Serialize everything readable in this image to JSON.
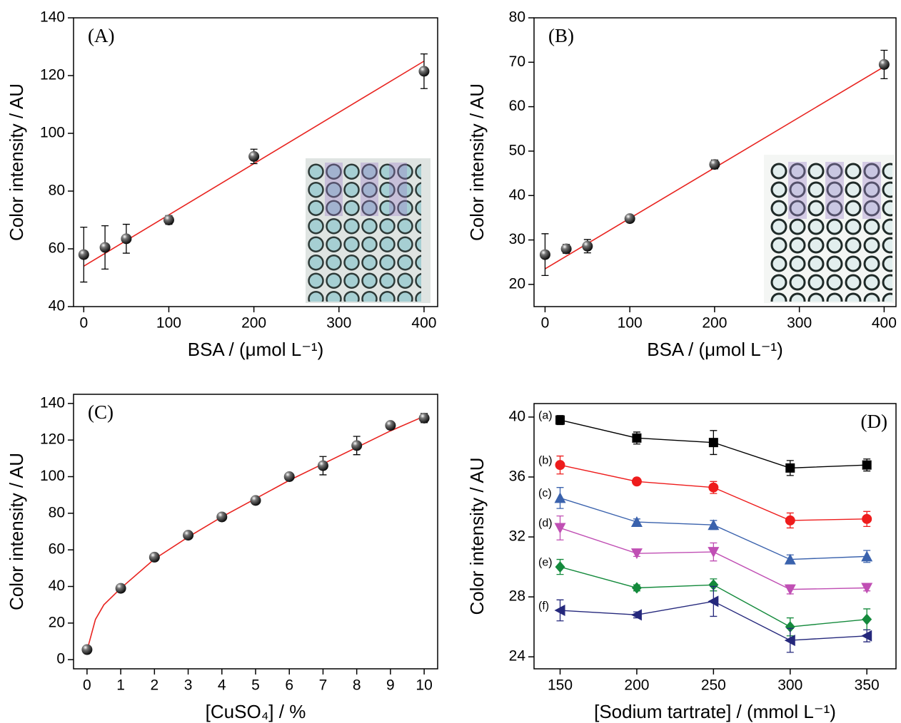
{
  "chart_data": [
    {
      "type": "scatter",
      "annotation": "(A)",
      "x_label": "BSA / (μmol L⁻¹)",
      "y_label": "Color intensity / AU",
      "xlim": [
        -12,
        416
      ],
      "xticks": [
        0,
        100,
        200,
        300,
        400
      ],
      "ylim": [
        40,
        140
      ],
      "yticks": [
        40,
        60,
        80,
        100,
        120,
        140
      ],
      "x": [
        0,
        25,
        50,
        100,
        200,
        400
      ],
      "series": [
        {
          "color": "#111111",
          "marker": "sphere",
          "values": [
            58,
            60.5,
            63.5,
            70,
            92,
            121.5
          ],
          "errors": [
            9.5,
            7.5,
            5,
            1.5,
            2.5,
            6
          ]
        }
      ],
      "fit": {
        "color": "#e8231f",
        "x": [
          0,
          400
        ],
        "values": [
          54,
          125
        ]
      }
    },
    {
      "type": "scatter",
      "annotation": "(B)",
      "x_label": "BSA / (μmol L⁻¹)",
      "y_label": "Color intensity / AU",
      "xlim": [
        -13,
        414
      ],
      "xticks": [
        0,
        100,
        200,
        300,
        400
      ],
      "ylim": [
        15,
        80
      ],
      "yticks": [
        20,
        30,
        40,
        50,
        60,
        70,
        80
      ],
      "x": [
        0,
        25,
        50,
        100,
        200,
        400
      ],
      "series": [
        {
          "color": "#111111",
          "marker": "sphere",
          "values": [
            26.7,
            28,
            28.6,
            34.8,
            47,
            69.5
          ],
          "errors": [
            4.7,
            1,
            1.5,
            0.5,
            1,
            3.2
          ]
        }
      ],
      "fit": {
        "color": "#e8231f",
        "x": [
          0,
          400
        ],
        "values": [
          23.5,
          69
        ]
      }
    },
    {
      "type": "scatter",
      "annotation": "(C)",
      "x_label": "[CuSO₄] / %",
      "y_label": "Color intensity / AU",
      "xlim": [
        -0.4,
        10.4
      ],
      "xticks": [
        0,
        1,
        2,
        3,
        4,
        5,
        6,
        7,
        8,
        9,
        10
      ],
      "ylim": [
        -5,
        145
      ],
      "yticks": [
        0,
        20,
        40,
        60,
        80,
        100,
        120,
        140
      ],
      "x": [
        0,
        1,
        2,
        3,
        4,
        5,
        6,
        7,
        8,
        9,
        10
      ],
      "series": [
        {
          "color": "#111111",
          "marker": "sphere",
          "values": [
            5.5,
            39,
            56,
            68,
            78,
            87,
            100,
            106,
            117,
            128,
            132
          ],
          "errors": [
            0,
            0,
            0,
            0,
            0,
            0,
            0,
            5,
            5,
            1,
            2.5
          ]
        }
      ],
      "fit": {
        "color": "#e8231f",
        "x": [
          0,
          0.25,
          0.5,
          1,
          2,
          3,
          4,
          5,
          6,
          7,
          8,
          9,
          10
        ],
        "values": [
          5,
          22,
          30,
          39,
          55,
          67,
          78,
          88,
          98,
          107,
          116,
          125,
          133
        ]
      }
    },
    {
      "type": "line",
      "annotation": "(D)",
      "x_label": "[Sodium tartrate] / (mmol L⁻¹)",
      "y_label": "Color intensity / AU",
      "xlim": [
        133,
        369
      ],
      "xticks": [
        150,
        200,
        250,
        300,
        350
      ],
      "ylim": [
        23.2,
        40.9
      ],
      "yticks": [
        24,
        28,
        32,
        36,
        40
      ],
      "x": [
        150,
        200,
        250,
        300,
        350
      ],
      "series": [
        {
          "name": "(a)",
          "color": "#000000",
          "marker": "square",
          "values": [
            39.8,
            38.6,
            38.3,
            36.6,
            36.8
          ],
          "errors": [
            0.3,
            0.4,
            0.8,
            0.5,
            0.4
          ]
        },
        {
          "name": "(b)",
          "color": "#ee1c1c",
          "marker": "circle",
          "values": [
            36.8,
            35.7,
            35.3,
            33.1,
            33.2
          ],
          "errors": [
            0.6,
            0.2,
            0.4,
            0.5,
            0.5
          ]
        },
        {
          "name": "(c)",
          "color": "#3a62ad",
          "marker": "triangle-up",
          "values": [
            34.6,
            33.0,
            32.8,
            30.5,
            30.7
          ],
          "errors": [
            0.7,
            0.2,
            0.3,
            0.3,
            0.4
          ]
        },
        {
          "name": "(d)",
          "color": "#c04fb4",
          "marker": "triangle-down",
          "values": [
            32.6,
            30.9,
            31.0,
            28.5,
            28.6
          ],
          "errors": [
            0.8,
            0.2,
            0.6,
            0.3,
            0.2
          ]
        },
        {
          "name": "(e)",
          "color": "#148a3c",
          "marker": "diamond",
          "values": [
            30.0,
            28.6,
            28.8,
            26.0,
            26.5
          ],
          "errors": [
            0.5,
            0.2,
            0.4,
            0.6,
            0.7
          ]
        },
        {
          "name": "(f)",
          "color": "#25287c",
          "marker": "triangle-left",
          "values": [
            27.1,
            26.8,
            27.7,
            25.1,
            25.4
          ],
          "errors": [
            0.7,
            0.2,
            1.0,
            0.8,
            0.4
          ]
        }
      ]
    }
  ]
}
